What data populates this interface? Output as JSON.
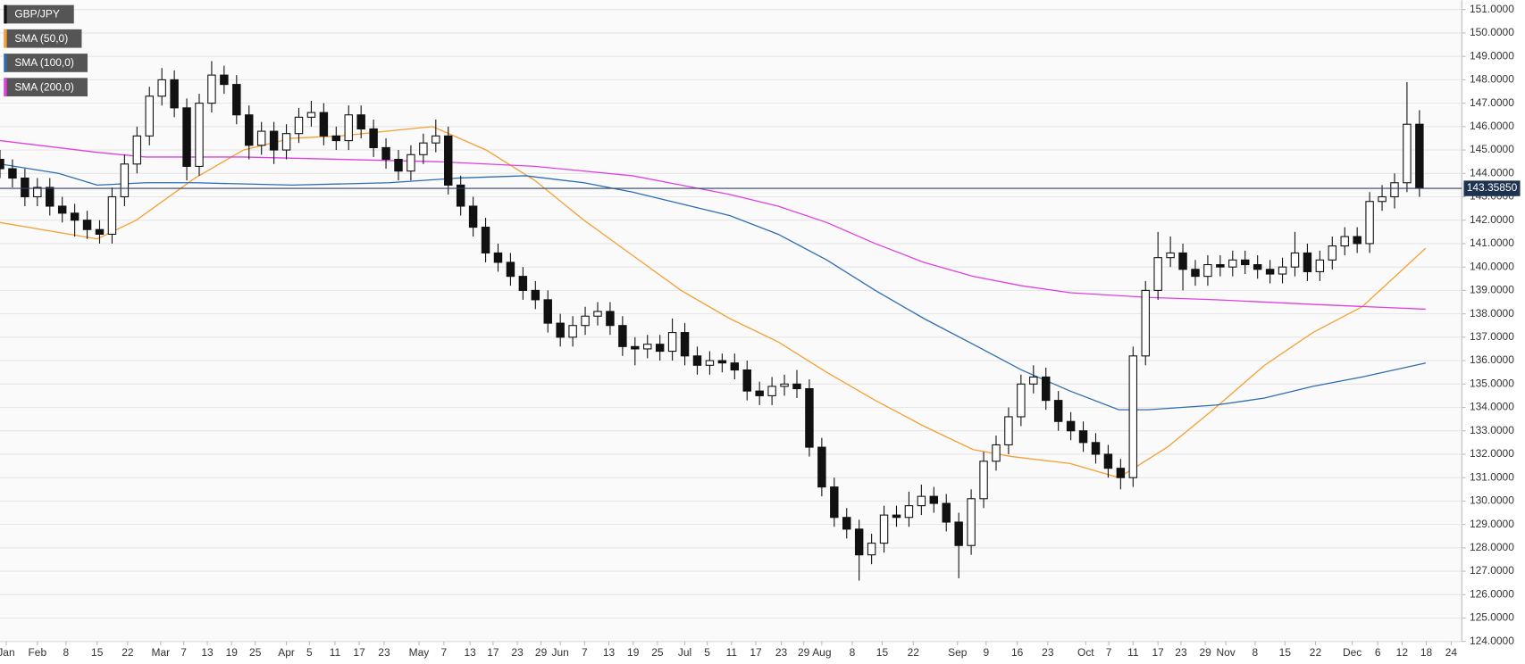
{
  "chart_data": {
    "type": "candlestick",
    "legend": [
      "GBP/JPY",
      "SMA (50,0)",
      "SMA (100,0)",
      "SMA (200,0)"
    ],
    "legend_colors": [
      "#111111",
      "#f5a033",
      "#2f6db0",
      "#e040e0"
    ],
    "x": [
      0,
      2,
      4,
      6,
      8,
      10,
      12,
      14,
      16,
      18,
      20,
      22,
      24,
      26,
      28,
      30,
      32,
      34,
      36,
      38,
      40,
      42,
      44,
      46,
      48,
      50,
      52,
      54,
      56,
      58,
      60,
      62,
      64,
      66,
      68,
      70,
      72,
      74,
      76,
      78,
      80,
      82,
      84,
      86,
      88,
      90,
      92,
      94,
      96,
      98,
      100,
      102,
      104,
      106,
      108,
      110,
      112,
      114,
      116,
      118,
      120,
      122,
      124,
      126,
      128,
      130,
      132,
      134,
      136,
      138,
      140,
      142,
      144,
      146,
      148,
      150,
      152,
      154,
      156,
      158,
      160,
      162,
      164,
      166,
      168,
      170,
      172,
      174,
      176,
      178,
      180,
      182,
      184,
      186,
      188,
      190,
      192,
      194,
      196,
      198,
      200,
      202,
      204,
      206,
      208,
      210,
      212,
      214,
      216,
      218,
      220,
      222,
      224,
      226,
      228
    ],
    "candles": [
      [
        144.6,
        145.0,
        143.8,
        144.2
      ],
      [
        144.2,
        144.6,
        143.4,
        143.8
      ],
      [
        143.8,
        144.2,
        142.6,
        143.0
      ],
      [
        143.0,
        143.8,
        142.6,
        143.4
      ],
      [
        143.4,
        143.8,
        142.2,
        142.6
      ],
      [
        142.6,
        143.0,
        141.9,
        142.3
      ],
      [
        142.3,
        142.7,
        141.3,
        142.0
      ],
      [
        142.0,
        142.4,
        141.2,
        141.6
      ],
      [
        141.6,
        142.0,
        141.0,
        141.4
      ],
      [
        141.4,
        143.4,
        141.0,
        143.0
      ],
      [
        143.0,
        144.8,
        142.6,
        144.4
      ],
      [
        144.4,
        146.0,
        144.0,
        145.6
      ],
      [
        145.6,
        147.7,
        145.2,
        147.3
      ],
      [
        147.3,
        148.5,
        146.9,
        148.0
      ],
      [
        148.0,
        148.4,
        146.4,
        146.8
      ],
      [
        146.8,
        147.2,
        143.7,
        144.3
      ],
      [
        144.3,
        147.4,
        143.9,
        147.0
      ],
      [
        147.0,
        148.8,
        146.6,
        148.2
      ],
      [
        148.2,
        148.6,
        147.4,
        147.8
      ],
      [
        147.8,
        148.2,
        146.1,
        146.5
      ],
      [
        146.5,
        146.9,
        144.6,
        145.2
      ],
      [
        145.2,
        146.2,
        144.8,
        145.8
      ],
      [
        145.8,
        146.2,
        144.4,
        145.0
      ],
      [
        145.0,
        146.1,
        144.6,
        145.7
      ],
      [
        145.7,
        146.8,
        145.3,
        146.4
      ],
      [
        146.4,
        147.1,
        146.0,
        146.6
      ],
      [
        146.6,
        147.0,
        145.2,
        145.6
      ],
      [
        145.6,
        146.0,
        145.0,
        145.4
      ],
      [
        145.4,
        146.9,
        145.0,
        146.5
      ],
      [
        146.5,
        146.9,
        145.5,
        145.9
      ],
      [
        145.9,
        146.3,
        144.7,
        145.1
      ],
      [
        145.1,
        145.5,
        144.2,
        144.6
      ],
      [
        144.6,
        145.0,
        143.7,
        144.1
      ],
      [
        144.1,
        145.2,
        143.7,
        144.8
      ],
      [
        144.8,
        145.7,
        144.4,
        145.3
      ],
      [
        145.3,
        146.3,
        144.9,
        145.6
      ],
      [
        145.6,
        146.0,
        143.1,
        143.5
      ],
      [
        143.5,
        143.9,
        142.2,
        142.6
      ],
      [
        142.6,
        143.0,
        141.3,
        141.7
      ],
      [
        141.7,
        142.1,
        140.2,
        140.6
      ],
      [
        140.6,
        141.0,
        139.8,
        140.2
      ],
      [
        140.2,
        140.6,
        139.2,
        139.6
      ],
      [
        139.6,
        140.0,
        138.6,
        139.0
      ],
      [
        139.0,
        139.4,
        138.2,
        138.6
      ],
      [
        138.6,
        139.0,
        137.2,
        137.6
      ],
      [
        137.6,
        138.0,
        136.6,
        137.0
      ],
      [
        137.0,
        137.9,
        136.6,
        137.5
      ],
      [
        137.5,
        138.3,
        137.1,
        137.9
      ],
      [
        137.9,
        138.5,
        137.5,
        138.1
      ],
      [
        138.1,
        138.5,
        137.1,
        137.5
      ],
      [
        137.5,
        137.9,
        136.2,
        136.6
      ],
      [
        136.6,
        137.0,
        135.8,
        136.5
      ],
      [
        136.5,
        137.1,
        136.1,
        136.7
      ],
      [
        136.7,
        137.1,
        136.0,
        136.4
      ],
      [
        136.4,
        137.8,
        136.0,
        137.2
      ],
      [
        137.2,
        137.6,
        135.8,
        136.2
      ],
      [
        136.2,
        136.6,
        135.4,
        135.8
      ],
      [
        135.8,
        136.4,
        135.4,
        136.0
      ],
      [
        136.0,
        136.3,
        135.5,
        135.9
      ],
      [
        135.9,
        136.3,
        135.2,
        135.6
      ],
      [
        135.6,
        136.0,
        134.3,
        134.7
      ],
      [
        134.7,
        135.1,
        134.1,
        134.5
      ],
      [
        134.5,
        135.3,
        134.1,
        134.9
      ],
      [
        134.9,
        135.4,
        134.5,
        135.0
      ],
      [
        135.0,
        135.6,
        134.4,
        134.8
      ],
      [
        134.8,
        135.2,
        131.9,
        132.3
      ],
      [
        132.3,
        132.7,
        130.2,
        130.6
      ],
      [
        130.6,
        131.0,
        128.9,
        129.3
      ],
      [
        129.3,
        129.7,
        128.4,
        128.8
      ],
      [
        128.8,
        129.2,
        126.6,
        127.7
      ],
      [
        127.7,
        128.6,
        127.3,
        128.2
      ],
      [
        128.2,
        129.8,
        127.8,
        129.4
      ],
      [
        129.4,
        129.8,
        128.9,
        129.3
      ],
      [
        129.3,
        130.4,
        128.9,
        129.8
      ],
      [
        129.8,
        130.7,
        129.4,
        130.2
      ],
      [
        130.2,
        130.6,
        129.5,
        129.9
      ],
      [
        129.9,
        130.3,
        128.7,
        129.1
      ],
      [
        129.1,
        129.5,
        126.7,
        128.1
      ],
      [
        128.1,
        130.5,
        127.7,
        130.1
      ],
      [
        130.1,
        132.1,
        129.7,
        131.7
      ],
      [
        131.7,
        132.8,
        131.3,
        132.4
      ],
      [
        132.4,
        134.0,
        132.0,
        133.6
      ],
      [
        133.6,
        135.4,
        133.2,
        135.0
      ],
      [
        135.0,
        135.8,
        134.6,
        135.3
      ],
      [
        135.3,
        135.7,
        133.9,
        134.3
      ],
      [
        134.3,
        134.7,
        133.0,
        133.4
      ],
      [
        133.4,
        133.8,
        132.6,
        133.0
      ],
      [
        133.0,
        133.4,
        132.1,
        132.5
      ],
      [
        132.5,
        132.9,
        131.6,
        132.0
      ],
      [
        132.0,
        132.4,
        131.0,
        131.4
      ],
      [
        131.4,
        131.8,
        130.5,
        131.0
      ],
      [
        131.0,
        136.6,
        130.6,
        136.2
      ],
      [
        136.2,
        139.4,
        135.8,
        139.0
      ],
      [
        139.0,
        141.5,
        138.6,
        140.4
      ],
      [
        140.4,
        141.3,
        140.0,
        140.6
      ],
      [
        140.6,
        141.0,
        139.0,
        139.9
      ],
      [
        139.9,
        140.3,
        139.2,
        139.6
      ],
      [
        139.6,
        140.5,
        139.2,
        140.1
      ],
      [
        140.1,
        140.5,
        139.6,
        140.0
      ],
      [
        140.0,
        140.7,
        139.6,
        140.3
      ],
      [
        140.3,
        140.7,
        139.7,
        140.1
      ],
      [
        140.1,
        140.5,
        139.5,
        139.9
      ],
      [
        139.9,
        140.3,
        139.3,
        139.7
      ],
      [
        139.7,
        140.4,
        139.3,
        140.0
      ],
      [
        140.0,
        141.5,
        139.6,
        140.6
      ],
      [
        140.6,
        141.0,
        139.4,
        139.8
      ],
      [
        139.8,
        140.7,
        139.4,
        140.3
      ],
      [
        140.3,
        141.3,
        139.9,
        140.9
      ],
      [
        140.9,
        141.7,
        140.5,
        141.3
      ],
      [
        141.3,
        141.7,
        140.6,
        141.0
      ],
      [
        141.0,
        143.2,
        140.6,
        142.8
      ],
      [
        142.8,
        143.5,
        142.4,
        143.0
      ],
      [
        143.0,
        144.0,
        142.5,
        143.6
      ],
      [
        143.6,
        147.9,
        143.2,
        146.1
      ],
      [
        146.1,
        146.7,
        143.0,
        143.4
      ]
    ],
    "up_color": "#ffffff",
    "down_color": "#111111",
    "series": [
      {
        "name": "SMA (50,0)",
        "color": "#f5a033",
        "x": [
          0,
          15.6,
          21.9,
          31.3,
          39.1,
          46.9,
          54.7,
          65.6,
          69.5,
          78.1,
          85.9,
          93.8,
          101.6,
          109.4,
          117.2,
          125,
          132.8,
          140.6,
          148.4,
          156.3,
          162.5,
          171.9,
          179.7,
          187.5,
          195.3,
          203.1,
          210.9,
          218.8,
          229
        ],
        "values": [
          141.9,
          141.2,
          142.0,
          143.8,
          145.0,
          145.5,
          145.6,
          145.9,
          146.0,
          145.0,
          143.7,
          142.0,
          140.5,
          139.0,
          137.8,
          136.8,
          135.5,
          134.3,
          133.2,
          132.2,
          131.9,
          131.6,
          131.0,
          132.3,
          134.0,
          135.8,
          137.2,
          138.3,
          140.8
        ]
      },
      {
        "name": "SMA (100,0)",
        "color": "#2f6db0",
        "x": [
          0,
          9.4,
          15.6,
          23.4,
          31.3,
          46.9,
          62.5,
          73.4,
          84.4,
          93.8,
          101.6,
          109.4,
          117.2,
          125,
          132.8,
          140.6,
          148.4,
          156.3,
          164.1,
          171.9,
          179.7,
          184.4,
          195.3,
          203.1,
          210.9,
          218.8,
          229
        ],
        "values": [
          144.4,
          144.0,
          143.5,
          143.6,
          143.6,
          143.5,
          143.6,
          143.8,
          143.9,
          143.6,
          143.2,
          142.7,
          142.2,
          141.4,
          140.3,
          139.0,
          137.8,
          136.7,
          135.6,
          134.7,
          133.9,
          133.9,
          134.1,
          134.4,
          134.9,
          135.3,
          135.9
        ]
      },
      {
        "name": "SMA (200,0)",
        "color": "#e040e0",
        "x": [
          0,
          15.6,
          23.4,
          39.1,
          54.7,
          70.3,
          85.9,
          101.6,
          109.4,
          117.2,
          125,
          132.8,
          140.6,
          148.4,
          156.3,
          164.1,
          171.9,
          184.4,
          195.3,
          210.9,
          229
        ],
        "values": [
          145.4,
          144.9,
          144.7,
          144.7,
          144.6,
          144.5,
          144.3,
          143.9,
          143.5,
          143.1,
          142.6,
          141.9,
          141.0,
          140.2,
          139.6,
          139.2,
          138.9,
          138.7,
          138.6,
          138.4,
          138.2
        ]
      }
    ],
    "last_price": 143.3585,
    "last_price_label": "143.35850",
    "xlim": [
      0,
      234.8
    ],
    "xticks": [
      {
        "value": 1,
        "label": "Jan"
      },
      {
        "value": 6,
        "label": "Feb"
      },
      {
        "value": 10.6,
        "label": "8"
      },
      {
        "value": 15.6,
        "label": "15"
      },
      {
        "value": 20.5,
        "label": "22"
      },
      {
        "value": 25.8,
        "label": "Mar"
      },
      {
        "value": 29.5,
        "label": "7"
      },
      {
        "value": 33.3,
        "label": "13"
      },
      {
        "value": 37.2,
        "label": "19"
      },
      {
        "value": 41,
        "label": "25"
      },
      {
        "value": 46,
        "label": "Apr"
      },
      {
        "value": 49.7,
        "label": "5"
      },
      {
        "value": 53.8,
        "label": "11"
      },
      {
        "value": 57.7,
        "label": "17"
      },
      {
        "value": 61.7,
        "label": "23"
      },
      {
        "value": 67.3,
        "label": "May"
      },
      {
        "value": 71.3,
        "label": "7"
      },
      {
        "value": 75.5,
        "label": "13"
      },
      {
        "value": 79.2,
        "label": "17"
      },
      {
        "value": 83.1,
        "label": "23"
      },
      {
        "value": 86.9,
        "label": "29"
      },
      {
        "value": 90,
        "label": "Jun"
      },
      {
        "value": 93.9,
        "label": "7"
      },
      {
        "value": 97.8,
        "label": "13"
      },
      {
        "value": 101.7,
        "label": "19"
      },
      {
        "value": 105.6,
        "label": "25"
      },
      {
        "value": 110,
        "label": "Jul"
      },
      {
        "value": 113.6,
        "label": "5"
      },
      {
        "value": 117.5,
        "label": "11"
      },
      {
        "value": 121.4,
        "label": "17"
      },
      {
        "value": 125.5,
        "label": "23"
      },
      {
        "value": 129.1,
        "label": "29"
      },
      {
        "value": 132,
        "label": "Aug"
      },
      {
        "value": 136.9,
        "label": "8"
      },
      {
        "value": 141.7,
        "label": "15"
      },
      {
        "value": 146.7,
        "label": "22"
      },
      {
        "value": 153.8,
        "label": "Sep"
      },
      {
        "value": 158.4,
        "label": "9"
      },
      {
        "value": 163.4,
        "label": "16"
      },
      {
        "value": 168.3,
        "label": "23"
      },
      {
        "value": 174.4,
        "label": "Oct"
      },
      {
        "value": 178.1,
        "label": "7"
      },
      {
        "value": 182,
        "label": "11"
      },
      {
        "value": 186,
        "label": "17"
      },
      {
        "value": 189.7,
        "label": "23"
      },
      {
        "value": 193.6,
        "label": "29"
      },
      {
        "value": 196.9,
        "label": "Nov"
      },
      {
        "value": 201.6,
        "label": "8"
      },
      {
        "value": 206.4,
        "label": "15"
      },
      {
        "value": 211.3,
        "label": "22"
      },
      {
        "value": 217.2,
        "label": "Dec"
      },
      {
        "value": 221.3,
        "label": "6"
      },
      {
        "value": 225.2,
        "label": "12"
      },
      {
        "value": 229.1,
        "label": "18"
      },
      {
        "value": 233.1,
        "label": "24"
      }
    ],
    "ylim": [
      124,
      151.4
    ],
    "yticks": [
      {
        "value": 124,
        "label": "124.0000"
      },
      {
        "value": 125,
        "label": "125.0000"
      },
      {
        "value": 126,
        "label": "126.0000"
      },
      {
        "value": 127,
        "label": "127.0000"
      },
      {
        "value": 128,
        "label": "128.0000"
      },
      {
        "value": 129,
        "label": "129.0000"
      },
      {
        "value": 130,
        "label": "130.0000"
      },
      {
        "value": 131,
        "label": "131.0000"
      },
      {
        "value": 132,
        "label": "132.0000"
      },
      {
        "value": 133,
        "label": "133.0000"
      },
      {
        "value": 134,
        "label": "134.0000"
      },
      {
        "value": 135,
        "label": "135.0000"
      },
      {
        "value": 136,
        "label": "136.0000"
      },
      {
        "value": 137,
        "label": "137.0000"
      },
      {
        "value": 138,
        "label": "138.0000"
      },
      {
        "value": 139,
        "label": "139.0000"
      },
      {
        "value": 140,
        "label": "140.0000"
      },
      {
        "value": 141,
        "label": "141.0000"
      },
      {
        "value": 142,
        "label": "142.0000"
      },
      {
        "value": 143,
        "label": "143.0000"
      },
      {
        "value": 144,
        "label": "144.0000"
      },
      {
        "value": 145,
        "label": "145.0000"
      },
      {
        "value": 146,
        "label": "146.0000"
      },
      {
        "value": 147,
        "label": "147.0000"
      },
      {
        "value": 148,
        "label": "148.0000"
      },
      {
        "value": 149,
        "label": "149.0000"
      },
      {
        "value": 150,
        "label": "150.0000"
      },
      {
        "value": 151,
        "label": "151.0000"
      }
    ],
    "grid": true
  }
}
